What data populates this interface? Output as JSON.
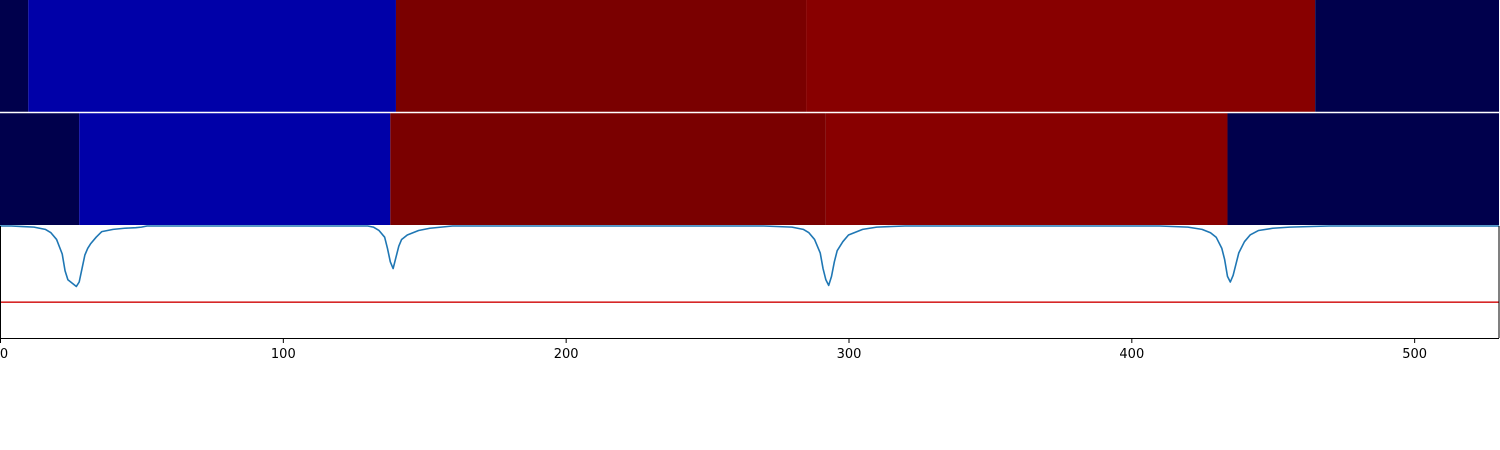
{
  "chart_data": {
    "type": "heatmap",
    "x_axis": {
      "range": [
        0,
        530
      ],
      "ticks": [
        0,
        100,
        200,
        300,
        400,
        500
      ],
      "tick_labels": [
        "0",
        "100",
        "200",
        "300",
        "400",
        "500"
      ]
    },
    "segment_tracks": [
      {
        "segments": [
          {
            "start": 0,
            "end": 10,
            "color": "#00004c"
          },
          {
            "start": 10,
            "end": 140,
            "color": "#0000a8"
          },
          {
            "start": 140,
            "end": 285,
            "color": "#7a0000"
          },
          {
            "start": 285,
            "end": 465,
            "color": "#880000"
          },
          {
            "start": 465,
            "end": 530,
            "color": "#00004c"
          }
        ]
      },
      {
        "segments": [
          {
            "start": 0,
            "end": 28,
            "color": "#00004c"
          },
          {
            "start": 28,
            "end": 138,
            "color": "#0000a8"
          },
          {
            "start": 138,
            "end": 292,
            "color": "#7a0000"
          },
          {
            "start": 292,
            "end": 434,
            "color": "#880000"
          },
          {
            "start": 434,
            "end": 530,
            "color": "#00004c"
          }
        ]
      }
    ],
    "line_panel": {
      "ylim": [
        0,
        1
      ],
      "threshold": 0.32,
      "threshold_color": "#d62728",
      "line_color": "#1f77b4",
      "series": {
        "x": [
          0,
          4,
          8,
          12,
          16,
          18,
          20,
          22,
          23,
          24,
          25,
          26,
          27,
          28,
          29,
          30,
          31,
          32,
          34,
          36,
          40,
          44,
          48,
          50,
          52,
          70,
          90,
          110,
          125,
          130,
          132,
          134,
          136,
          137,
          138,
          139,
          140,
          141,
          142,
          144,
          148,
          152,
          156,
          160,
          200,
          240,
          270,
          280,
          284,
          286,
          288,
          290,
          291,
          292,
          293,
          294,
          295,
          296,
          298,
          300,
          305,
          310,
          320,
          340,
          380,
          410,
          420,
          425,
          428,
          430,
          432,
          433,
          434,
          435,
          436,
          437,
          438,
          440,
          442,
          445,
          450,
          456,
          470,
          500,
          530
        ],
        "y": [
          1.0,
          1.0,
          0.995,
          0.99,
          0.97,
          0.94,
          0.88,
          0.75,
          0.6,
          0.52,
          0.5,
          0.48,
          0.46,
          0.5,
          0.62,
          0.74,
          0.8,
          0.84,
          0.9,
          0.95,
          0.97,
          0.98,
          0.985,
          0.99,
          1.0,
          1.0,
          1.0,
          1.0,
          1.0,
          1.0,
          0.99,
          0.96,
          0.9,
          0.8,
          0.68,
          0.62,
          0.72,
          0.82,
          0.88,
          0.92,
          0.96,
          0.98,
          0.99,
          1.0,
          1.0,
          1.0,
          1.0,
          0.99,
          0.97,
          0.94,
          0.88,
          0.76,
          0.62,
          0.52,
          0.47,
          0.55,
          0.68,
          0.78,
          0.86,
          0.92,
          0.97,
          0.99,
          1.0,
          1.0,
          1.0,
          1.0,
          0.99,
          0.97,
          0.94,
          0.9,
          0.8,
          0.7,
          0.55,
          0.5,
          0.56,
          0.66,
          0.76,
          0.86,
          0.92,
          0.96,
          0.98,
          0.99,
          1.0,
          1.0,
          1.0
        ]
      }
    }
  }
}
